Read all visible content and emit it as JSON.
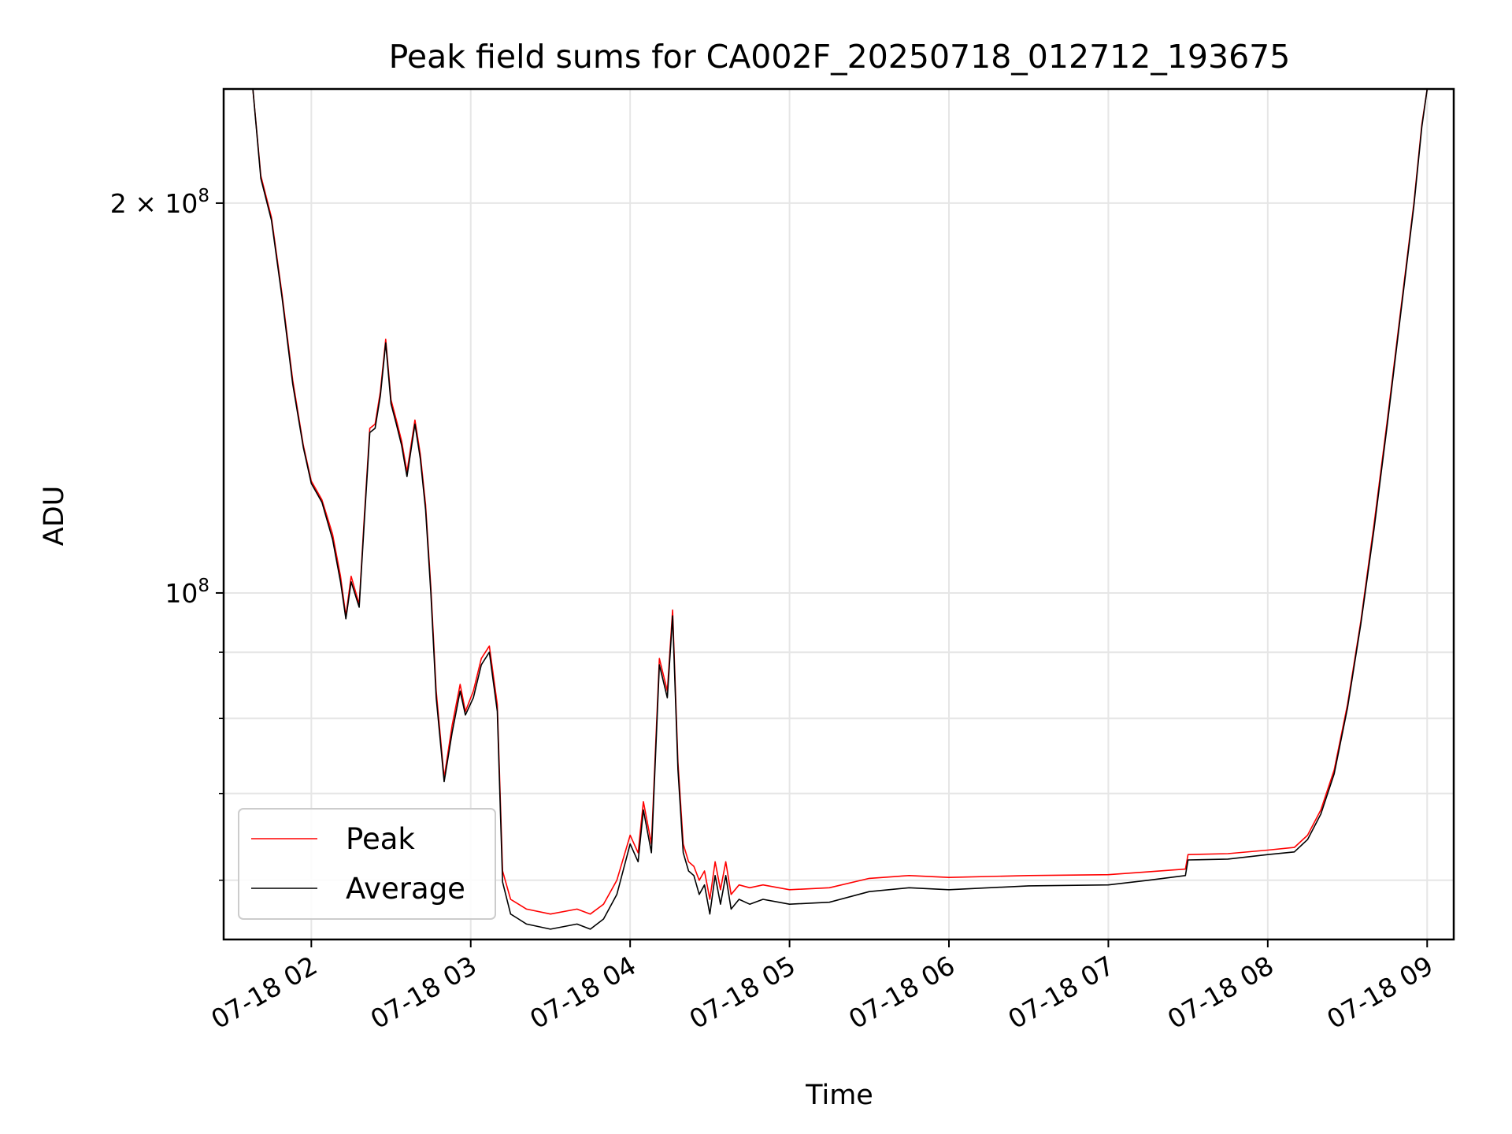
{
  "chart_data": {
    "type": "line",
    "title": "Peak field sums for CA002F_20250718_012712_193675",
    "xlabel": "Time",
    "ylabel": "ADU",
    "yscale": "log",
    "xlim": [
      "2025-07-18 01:27",
      "2025-07-18 09:10"
    ],
    "ylim": [
      54000000,
      245000000
    ],
    "grid": true,
    "legend_position": "lower-left",
    "x_ticks": [
      {
        "time": "2025-07-18 02:00",
        "label": "07-18 02"
      },
      {
        "time": "2025-07-18 03:00",
        "label": "07-18 03"
      },
      {
        "time": "2025-07-18 04:00",
        "label": "07-18 04"
      },
      {
        "time": "2025-07-18 05:00",
        "label": "07-18 05"
      },
      {
        "time": "2025-07-18 06:00",
        "label": "07-18 06"
      },
      {
        "time": "2025-07-18 07:00",
        "label": "07-18 07"
      },
      {
        "time": "2025-07-18 08:00",
        "label": "07-18 08"
      },
      {
        "time": "2025-07-18 09:00",
        "label": "07-18 09"
      }
    ],
    "y_ticks_major": [
      {
        "value": 100000000,
        "label_base": "10",
        "label_exp": "8",
        "label_prefix": ""
      },
      {
        "value": 200000000,
        "label_base": "10",
        "label_exp": "8",
        "label_prefix": "2 × "
      }
    ],
    "y_ticks_minor": [
      60000000,
      70000000,
      80000000,
      90000000
    ],
    "x": [
      "2025-07-18 01:27",
      "2025-07-18 01:38",
      "2025-07-18 01:41",
      "2025-07-18 01:45",
      "2025-07-18 01:49",
      "2025-07-18 01:53",
      "2025-07-18 01:57",
      "2025-07-18 02:00",
      "2025-07-18 02:04",
      "2025-07-18 02:08",
      "2025-07-18 02:11",
      "2025-07-18 02:13",
      "2025-07-18 02:15",
      "2025-07-18 02:18",
      "2025-07-18 02:20",
      "2025-07-18 02:22",
      "2025-07-18 02:24",
      "2025-07-18 02:26",
      "2025-07-18 02:28",
      "2025-07-18 02:30",
      "2025-07-18 02:32",
      "2025-07-18 02:34",
      "2025-07-18 02:36",
      "2025-07-18 02:39",
      "2025-07-18 02:41",
      "2025-07-18 02:43",
      "2025-07-18 02:45",
      "2025-07-18 02:47",
      "2025-07-18 02:50",
      "2025-07-18 02:53",
      "2025-07-18 02:56",
      "2025-07-18 02:58",
      "2025-07-18 03:01",
      "2025-07-18 03:04",
      "2025-07-18 03:07",
      "2025-07-18 03:10",
      "2025-07-18 03:12",
      "2025-07-18 03:15",
      "2025-07-18 03:18",
      "2025-07-18 03:21",
      "2025-07-18 03:30",
      "2025-07-18 03:40",
      "2025-07-18 03:45",
      "2025-07-18 03:50",
      "2025-07-18 03:55",
      "2025-07-18 04:00",
      "2025-07-18 04:03",
      "2025-07-18 04:05",
      "2025-07-18 04:08",
      "2025-07-18 04:11",
      "2025-07-18 04:14",
      "2025-07-18 04:16",
      "2025-07-18 04:18",
      "2025-07-18 04:20",
      "2025-07-18 04:22",
      "2025-07-18 04:24",
      "2025-07-18 04:26",
      "2025-07-18 04:28",
      "2025-07-18 04:30",
      "2025-07-18 04:32",
      "2025-07-18 04:34",
      "2025-07-18 04:36",
      "2025-07-18 04:38",
      "2025-07-18 04:41",
      "2025-07-18 04:45",
      "2025-07-18 04:50",
      "2025-07-18 05:00",
      "2025-07-18 05:15",
      "2025-07-18 05:30",
      "2025-07-18 05:45",
      "2025-07-18 06:00",
      "2025-07-18 06:30",
      "2025-07-18 07:00",
      "2025-07-18 07:15",
      "2025-07-18 07:29",
      "2025-07-18 07:30",
      "2025-07-18 07:45",
      "2025-07-18 08:00",
      "2025-07-18 08:10",
      "2025-07-18 08:15",
      "2025-07-18 08:20",
      "2025-07-18 08:25",
      "2025-07-18 08:30",
      "2025-07-18 08:35",
      "2025-07-18 08:40",
      "2025-07-18 08:45",
      "2025-07-18 08:50",
      "2025-07-18 08:55",
      "2025-07-18 08:58",
      "2025-07-18 09:00",
      "2025-07-18 09:10"
    ],
    "series": [
      {
        "name": "Peak",
        "color": "#ff0000",
        "values": [
          245000000,
          245000000,
          210000000,
          195000000,
          170000000,
          146000000,
          130000000,
          122000000,
          118000000,
          111000000,
          103000000,
          96000000,
          103000000,
          98000000,
          115000000,
          134000000,
          135000000,
          143000000,
          157000000,
          141000000,
          136000000,
          131000000,
          124000000,
          136000000,
          128000000,
          117000000,
          101000000,
          84000000,
          72000000,
          79000000,
          85000000,
          81000000,
          84000000,
          89000000,
          91000000,
          82000000,
          61000000,
          58000000,
          57500000,
          57000000,
          56500000,
          57000000,
          56500000,
          57500000,
          60000000,
          65000000,
          63000000,
          69000000,
          64000000,
          89000000,
          84000000,
          97000000,
          74000000,
          64000000,
          62000000,
          61500000,
          60000000,
          61000000,
          58000000,
          62000000,
          59000000,
          62000000,
          58500000,
          59500000,
          59200000,
          59500000,
          59000000,
          59200000,
          60200000,
          60500000,
          60300000,
          60500000,
          60600000,
          60900000,
          61200000,
          62800000,
          62900000,
          63300000,
          63600000,
          65000000,
          68000000,
          73000000,
          82000000,
          95000000,
          113000000,
          136000000,
          165000000,
          200000000,
          230000000,
          245000000,
          245000000
        ]
      },
      {
        "name": "Average",
        "color": "#000000",
        "values": [
          245000000,
          245000000,
          209000000,
          194000000,
          169000000,
          145000000,
          129500000,
          121500000,
          117500000,
          110000000,
          102000000,
          95500000,
          102000000,
          97500000,
          114000000,
          133000000,
          134000000,
          142000000,
          156000000,
          140000000,
          135000000,
          130000000,
          123000000,
          135000000,
          127000000,
          116000000,
          100000000,
          83000000,
          71500000,
          78000000,
          84000000,
          80500000,
          83000000,
          88000000,
          90000000,
          81000000,
          59800000,
          56500000,
          56000000,
          55500000,
          55000000,
          55500000,
          55000000,
          56000000,
          58500000,
          64000000,
          62000000,
          68000000,
          63000000,
          88000000,
          83000000,
          96000000,
          73000000,
          63000000,
          61000000,
          60500000,
          58500000,
          59500000,
          56500000,
          60500000,
          57500000,
          60500000,
          57000000,
          58000000,
          57500000,
          58000000,
          57500000,
          57700000,
          58800000,
          59200000,
          59000000,
          59400000,
          59500000,
          60000000,
          60500000,
          62200000,
          62300000,
          62800000,
          63100000,
          64500000,
          67500000,
          72500000,
          81500000,
          94500000,
          112000000,
          135000000,
          164000000,
          199000000,
          229000000,
          245000000,
          245000000
        ]
      }
    ]
  }
}
